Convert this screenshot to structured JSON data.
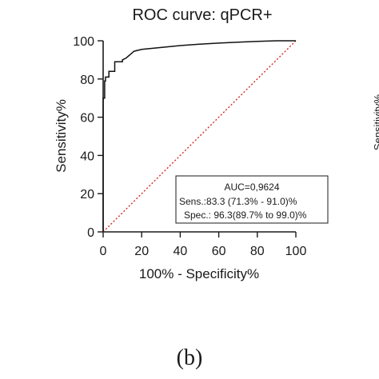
{
  "chart_data": {
    "type": "line",
    "title": "ROC curve: qPCR+",
    "xlabel": "100% - Specificity%",
    "ylabel": "Sensitivity%",
    "xlim": [
      0,
      100
    ],
    "ylim": [
      0,
      100
    ],
    "xticks": [
      0,
      20,
      40,
      60,
      80,
      100
    ],
    "yticks": [
      0,
      20,
      40,
      60,
      80,
      100
    ],
    "xtick_labels": [
      "0",
      "20",
      "40",
      "60",
      "80",
      "100"
    ],
    "ytick_labels": [
      "0",
      "20",
      "40",
      "60",
      "80",
      "100"
    ],
    "grid": false,
    "series": [
      {
        "style": "solid",
        "color": "#111111",
        "x": [
          0,
          0,
          0.8,
          0.8,
          1.2,
          1.2,
          3,
          3,
          6,
          6,
          10,
          10,
          12,
          16,
          20,
          30,
          40,
          50,
          60,
          70,
          80,
          90,
          100
        ],
        "y": [
          0,
          70,
          70,
          79,
          79,
          81,
          81,
          84,
          84,
          89,
          89,
          90,
          91,
          94.5,
          95.5,
          96.5,
          97.5,
          98.2,
          98.8,
          99.3,
          99.7,
          100,
          100
        ]
      },
      {
        "style": "dotted",
        "color": "#d42a1e",
        "x": [
          0,
          100
        ],
        "y": [
          0,
          100
        ]
      }
    ],
    "annotation": {
      "lines": [
        "AUC=0,9624",
        "Sens.:83.3 (71.3% - 91.0)%",
        "Spec.: 96.3(89.7% to 99.0)%"
      ]
    }
  },
  "caption": "(b)",
  "cropped_neighbor_label": "Sensitivity%"
}
